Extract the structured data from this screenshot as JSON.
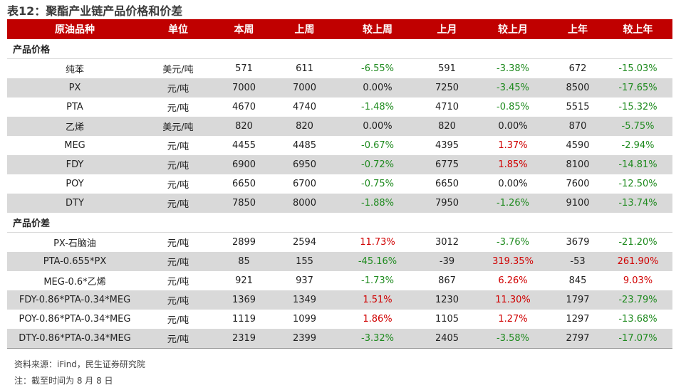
{
  "title": "表12：聚酯产业链产品价格和价差",
  "headers": [
    "原油品种",
    "单位",
    "本周",
    "上周",
    "较上周",
    "上月",
    "较上月",
    "上年",
    "较上年"
  ],
  "section1": "产品价格",
  "section2": "产品价差",
  "rows1": [
    [
      "纯苯",
      "美元/吨",
      "571",
      "611",
      "-6.55%",
      "591",
      "-3.38%",
      "672",
      "-15.03%"
    ],
    [
      "PX",
      "元/吨",
      "7000",
      "7000",
      "0.00%",
      "7250",
      "-3.45%",
      "8500",
      "-17.65%"
    ],
    [
      "PTA",
      "元/吨",
      "4670",
      "4740",
      "-1.48%",
      "4710",
      "-0.85%",
      "5515",
      "-15.32%"
    ],
    [
      "乙烯",
      "美元/吨",
      "820",
      "820",
      "0.00%",
      "820",
      "0.00%",
      "870",
      "-5.75%"
    ],
    [
      "MEG",
      "元/吨",
      "4455",
      "4485",
      "-0.67%",
      "4395",
      "1.37%",
      "4590",
      "-2.94%"
    ],
    [
      "FDY",
      "元/吨",
      "6900",
      "6950",
      "-0.72%",
      "6775",
      "1.85%",
      "8100",
      "-14.81%"
    ],
    [
      "POY",
      "元/吨",
      "6650",
      "6700",
      "-0.75%",
      "6650",
      "0.00%",
      "7600",
      "-12.50%"
    ],
    [
      "DTY",
      "元/吨",
      "7850",
      "8000",
      "-1.88%",
      "7950",
      "-1.26%",
      "9100",
      "-13.74%"
    ]
  ],
  "rows2": [
    [
      "PX-石脑油",
      "元/吨",
      "2899",
      "2594",
      "11.73%",
      "3012",
      "-3.76%",
      "3679",
      "-21.20%"
    ],
    [
      "PTA-0.655*PX",
      "元/吨",
      "85",
      "155",
      "-45.16%",
      "-39",
      "319.35%",
      "-53",
      "261.90%"
    ],
    [
      "MEG-0.6*乙烯",
      "元/吨",
      "921",
      "937",
      "-1.73%",
      "867",
      "6.26%",
      "845",
      "9.03%"
    ],
    [
      "FDY-0.86*PTA-0.34*MEG",
      "元/吨",
      "1369",
      "1349",
      "1.51%",
      "1230",
      "11.30%",
      "1797",
      "-23.79%"
    ],
    [
      "POY-0.86*PTA-0.34*MEG",
      "元/吨",
      "1119",
      "1099",
      "1.86%",
      "1105",
      "1.27%",
      "1297",
      "-13.68%"
    ],
    [
      "DTY-0.86*PTA-0.34*MEG",
      "元/吨",
      "2319",
      "2399",
      "-3.32%",
      "2405",
      "-3.58%",
      "2797",
      "-17.07%"
    ]
  ],
  "source": "资料来源：iFind，民生证券研究院",
  "note": "注：截至时间为 8 月 8 日",
  "colors": {
    "header_bg": "#c00000",
    "stripe": "#d9d9d9",
    "negative": "#1e8a1e",
    "positive": "#d00000"
  }
}
